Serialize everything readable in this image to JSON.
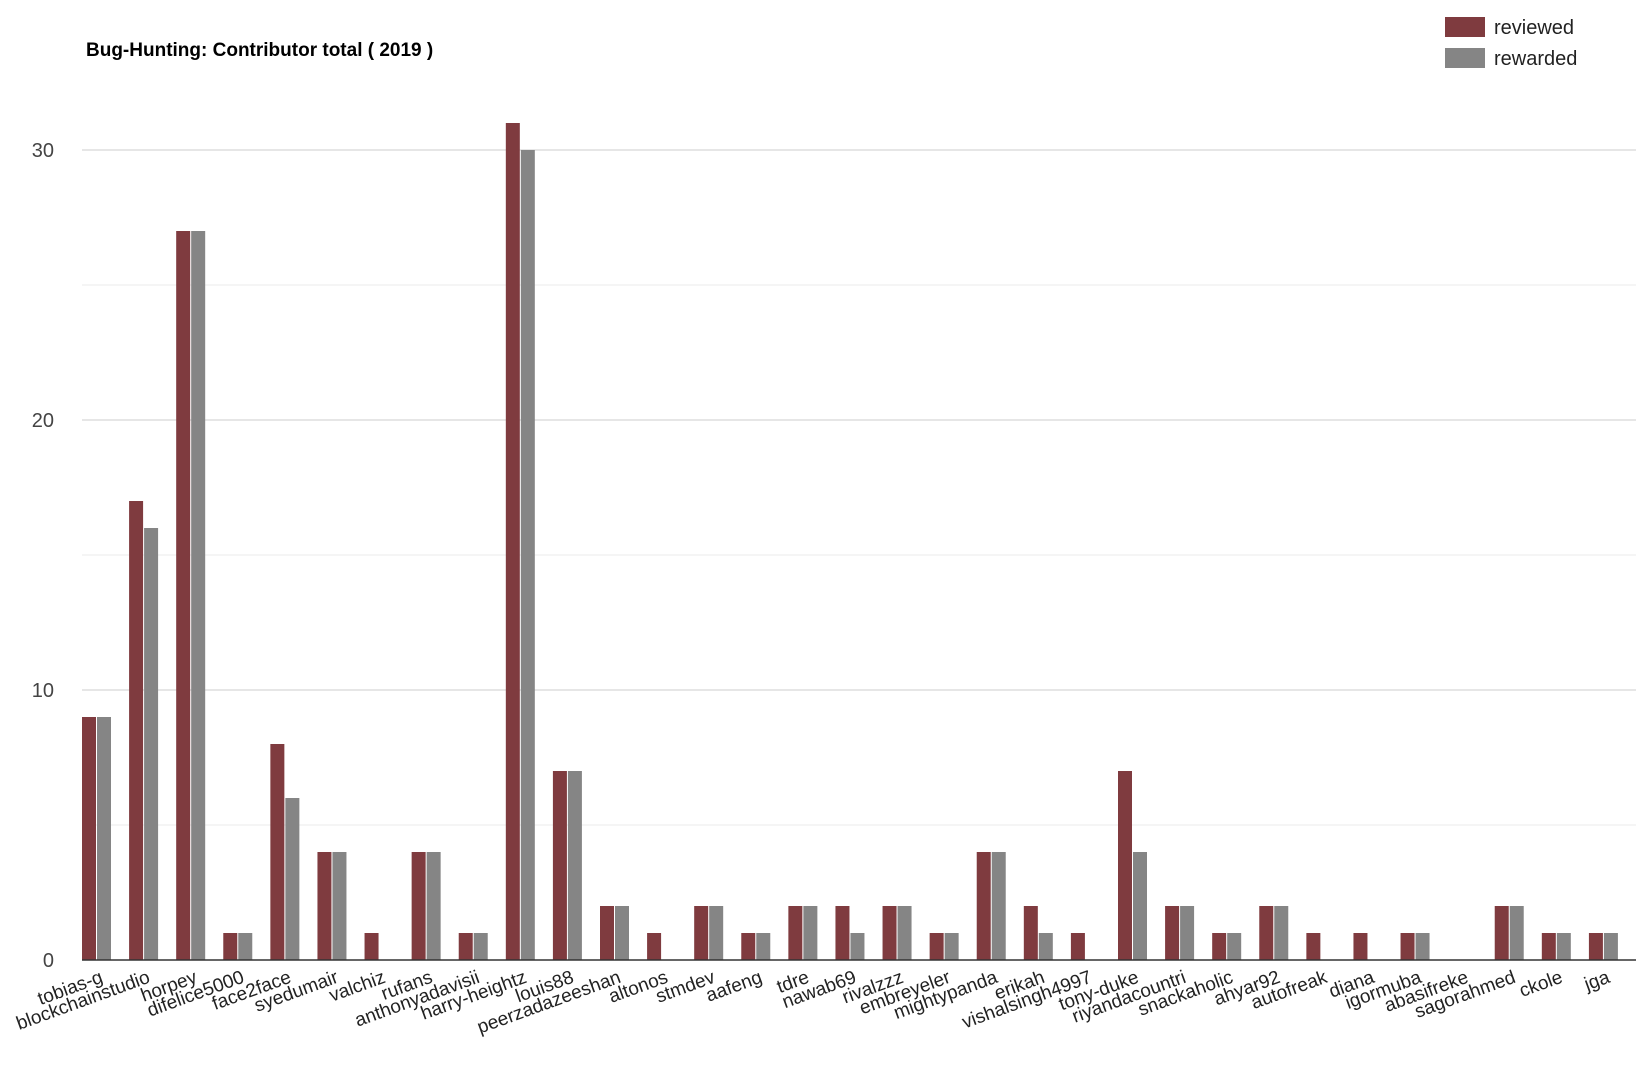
{
  "chart_data": {
    "type": "bar",
    "title": "Bug-Hunting: Contributor total ( 2019 )",
    "xlabel": "",
    "ylabel": "",
    "ylim": [
      0,
      32
    ],
    "yticks": [
      0,
      10,
      20,
      30
    ],
    "grid": true,
    "legend_position": "top-right",
    "categories": [
      "tobias-g",
      "blockchainstudio",
      "horpey",
      "difelice5000",
      "face2face",
      "syedumair",
      "valchiz",
      "rufans",
      "anthonyadavisii",
      "harry-heightz",
      "louis88",
      "peerzadazeeshan",
      "altonos",
      "stmdev",
      "aafeng",
      "tdre",
      "nawab69",
      "rivalzzz",
      "embreyeler",
      "mightypanda",
      "erikah",
      "vishalsingh4997",
      "tony-duke",
      "riyandacountri",
      "snackaholic",
      "ahyar92",
      "autofreak",
      "diana",
      "igormuba",
      "abasifreke",
      "sagorahmed",
      "ckole",
      "jga"
    ],
    "series": [
      {
        "name": "reviewed",
        "color": "#7f3b3f",
        "values": [
          9,
          17,
          27,
          1,
          8,
          4,
          1,
          4,
          1,
          31,
          7,
          2,
          1,
          2,
          1,
          2,
          2,
          2,
          1,
          4,
          2,
          1,
          7,
          2,
          1,
          2,
          1,
          1,
          1,
          0,
          2,
          1,
          1
        ]
      },
      {
        "name": "rewarded",
        "color": "#858585",
        "values": [
          9,
          16,
          27,
          1,
          6,
          4,
          0,
          4,
          1,
          30,
          7,
          2,
          0,
          2,
          1,
          2,
          1,
          2,
          1,
          4,
          1,
          0,
          4,
          2,
          1,
          2,
          0,
          0,
          1,
          0,
          2,
          1,
          1
        ]
      }
    ]
  }
}
